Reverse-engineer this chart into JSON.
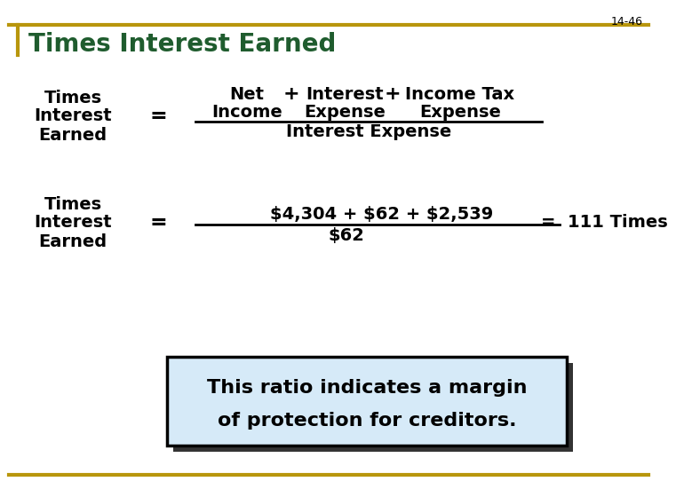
{
  "slide_number": "14-46",
  "title": "Times Interest Earned",
  "bg_color": "#FFFFFF",
  "title_color": "#1F5C2E",
  "border_color": "#B8960C",
  "slide_num_color": "#000000",
  "formula_label_lines": [
    "Times",
    "Interest",
    "Earned"
  ],
  "formula_denominator": "Interest Expense",
  "example_label_lines": [
    "Times",
    "Interest",
    "Earned"
  ],
  "example_numerator": "$4,304 + $62 + $2,539",
  "example_denominator": "$62",
  "example_result": "=  111 Times",
  "box_text_line1": "This ratio indicates a margin",
  "box_text_line2": "of protection for creditors.",
  "box_bg_color": "#D6EAF8",
  "box_border_color": "#000000",
  "box_shadow_color": "#333333",
  "font_size_title": 20,
  "font_size_body": 13,
  "font_size_slide_num": 9,
  "font_size_box": 16
}
